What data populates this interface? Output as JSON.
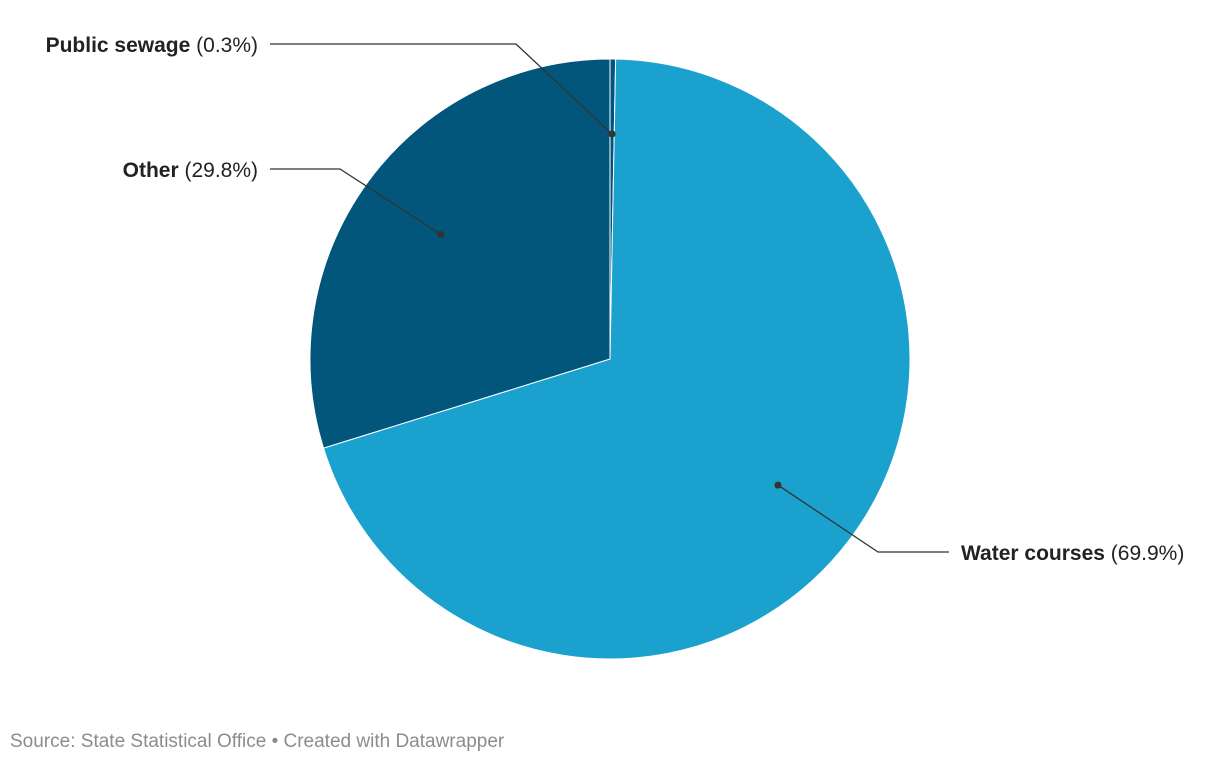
{
  "chart_data": {
    "type": "pie",
    "slices": [
      {
        "label": "Public sewage",
        "value": 0.3,
        "display": "(0.3%)",
        "color": "#005580"
      },
      {
        "label": "Water courses",
        "value": 69.9,
        "display": "(69.9%)",
        "color": "#1aa1cd"
      },
      {
        "label": "Other",
        "value": 29.8,
        "display": "(29.8%)",
        "color": "#02557b"
      }
    ],
    "start_angle_deg": 0,
    "direction": "clockwise",
    "legend": "none (direct labels with leader lines)"
  },
  "footer": {
    "source_label": "Source:",
    "source": "State Statistical Office",
    "separator": "•",
    "credit": "Created with Datawrapper"
  }
}
